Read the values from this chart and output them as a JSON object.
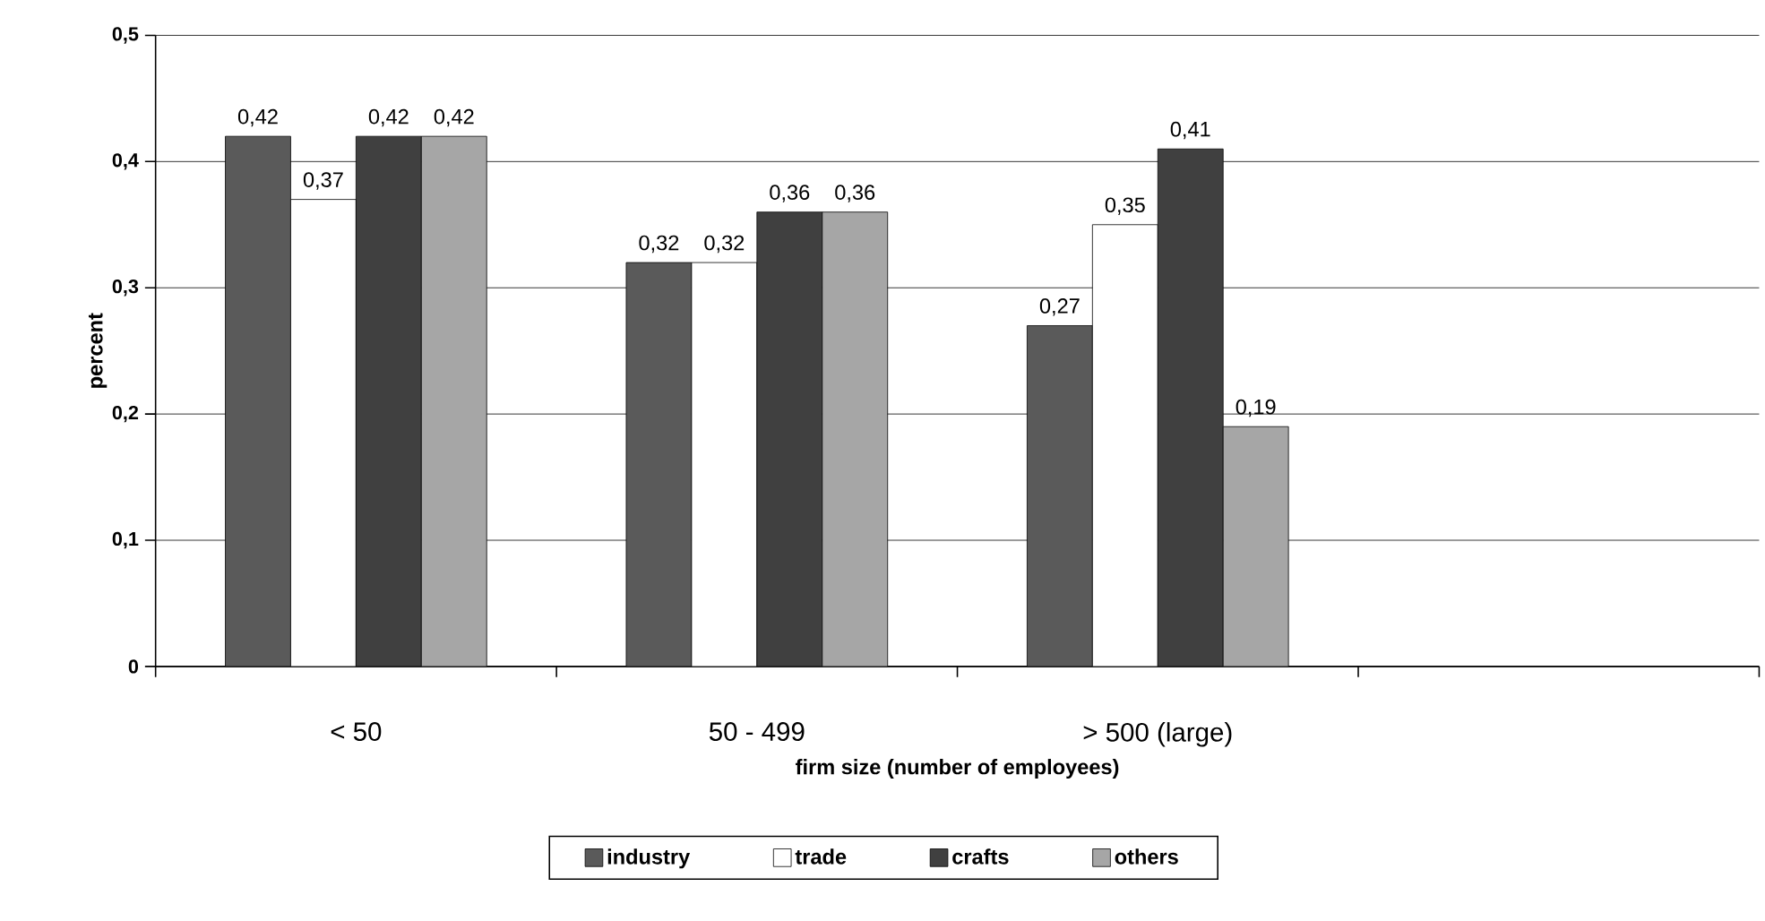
{
  "chart_data": {
    "type": "bar",
    "xlabel": "firm size (number of employees)",
    "ylabel": "percent",
    "categories": [
      "< 50",
      "50 - 499",
      "> 500 (large)",
      null
    ],
    "series": [
      {
        "name": "industry",
        "color": "#5a5a5a",
        "values": [
          0.42,
          0.32,
          0.27,
          null
        ],
        "value_labels": [
          "0,42",
          "0,32",
          "0,27",
          null
        ]
      },
      {
        "name": "trade",
        "color": "#ffffff",
        "values": [
          0.37,
          0.32,
          0.35,
          null
        ],
        "value_labels": [
          "0,37",
          "0,32",
          "0,35",
          null
        ]
      },
      {
        "name": "crafts",
        "color": "#404040",
        "values": [
          0.42,
          0.36,
          0.41,
          null
        ],
        "value_labels": [
          "0,42",
          "0,36",
          "0,41",
          null
        ]
      },
      {
        "name": "others",
        "color": "#a6a6a6",
        "values": [
          0.42,
          0.36,
          0.19,
          null
        ],
        "value_labels": [
          "0,42",
          "0,36",
          "0,19",
          null
        ]
      }
    ],
    "ylim": [
      0,
      0.5
    ],
    "yticks": [
      0,
      {
        "value": 0.1,
        "label": "0,1"
      },
      {
        "value": 0.2,
        "label": "0,2"
      },
      {
        "value": 0.3,
        "label": "0,3"
      },
      {
        "value": 0.4,
        "label": "0,4"
      },
      {
        "value": 0.5,
        "label": "0,5"
      }
    ],
    "grid": "y",
    "legend": "bottom"
  }
}
